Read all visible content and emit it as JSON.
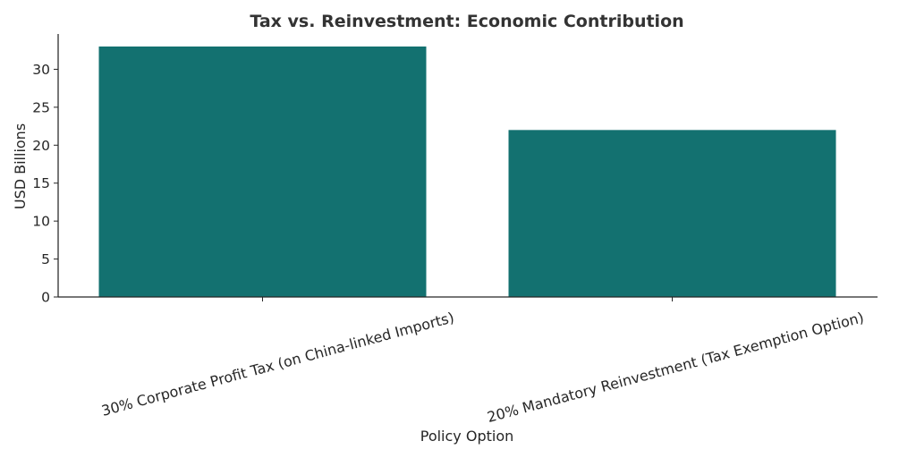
{
  "chart_data": {
    "type": "bar",
    "title": "Tax vs. Reinvestment: Economic Contribution",
    "xlabel": "Policy Option",
    "ylabel": "USD Billions",
    "categories": [
      "30% Corporate Profit Tax (on China-linked Imports)",
      "20% Mandatory Reinvestment (Tax Exemption Option)"
    ],
    "values": [
      33,
      22
    ],
    "ylim": [
      0,
      34.65
    ],
    "yticks": [
      0,
      5,
      10,
      15,
      20,
      25,
      30
    ],
    "bar_color": "#137170",
    "grid": false,
    "legend": "none"
  }
}
